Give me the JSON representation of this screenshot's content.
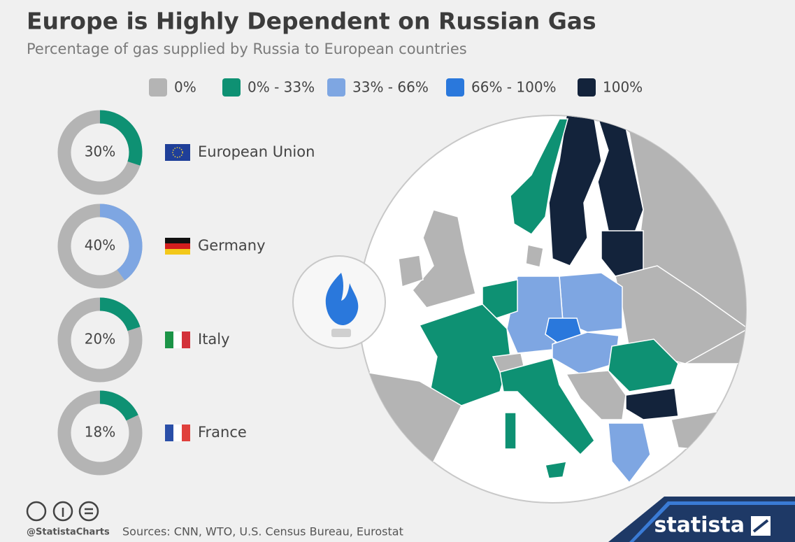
{
  "title": "Europe is Highly Dependent on Russian Gas",
  "subtitle": "Percentage of gas supplied by Russia to European countries",
  "legend": [
    {
      "label": "0%",
      "color": "#b4b4b4"
    },
    {
      "label": "0% - 33%",
      "color": "#0e9173"
    },
    {
      "label": "33% - 66%",
      "color": "#7ea6e2"
    },
    {
      "label": "66% - 100%",
      "color": "#2a78dc"
    },
    {
      "label": "100%",
      "color": "#13233b"
    }
  ],
  "chart_data": [
    {
      "type": "donut",
      "title": "European Union",
      "values": [
        30
      ],
      "value_labels": [
        "30%"
      ],
      "color": "#0e9173",
      "track_color": "#b4b4b4"
    },
    {
      "type": "donut",
      "title": "Germany",
      "values": [
        40
      ],
      "value_labels": [
        "40%"
      ],
      "color": "#7ea6e2",
      "track_color": "#b4b4b4"
    },
    {
      "type": "donut",
      "title": "Italy",
      "values": [
        20
      ],
      "value_labels": [
        "20%"
      ],
      "color": "#0e9173",
      "track_color": "#b4b4b4"
    },
    {
      "type": "donut",
      "title": "France",
      "values": [
        18
      ],
      "value_labels": [
        "18%"
      ],
      "color": "#0e9173",
      "track_color": "#b4b4b4"
    }
  ],
  "footer": {
    "handle": "@StatistaCharts",
    "sources": "Sources: CNN, WTO, U.S. Census Bureau, Eurostat",
    "brand": "statista"
  }
}
